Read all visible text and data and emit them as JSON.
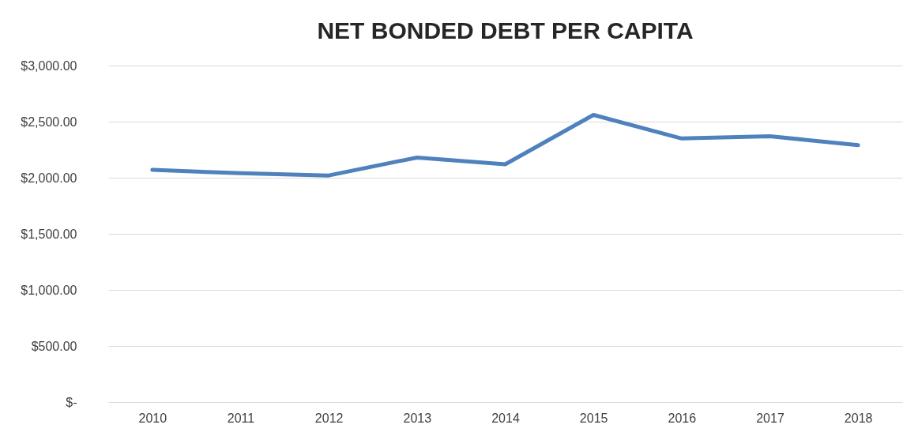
{
  "chart_data": {
    "type": "line",
    "title": "NET BONDED DEBT PER CAPITA",
    "categories": [
      "2010",
      "2011",
      "2012",
      "2013",
      "2014",
      "2015",
      "2016",
      "2017",
      "2018"
    ],
    "series": [
      {
        "color": "#4f81bd",
        "values": [
          2070,
          2040,
          2020,
          2180,
          2120,
          2560,
          2350,
          2370,
          2290
        ]
      }
    ],
    "ylim": [
      0,
      3000
    ],
    "yticks": [
      {
        "value": 0,
        "label": "$-"
      },
      {
        "value": 500,
        "label": "$500.00"
      },
      {
        "value": 1000,
        "label": "$1,000.00"
      },
      {
        "value": 1500,
        "label": "$1,500.00"
      },
      {
        "value": 2000,
        "label": "$2,000.00"
      },
      {
        "value": 2500,
        "label": "$2,500.00"
      },
      {
        "value": 3000,
        "label": "$3,000.00"
      }
    ],
    "grid": "y",
    "legend": false,
    "marker": "none",
    "line_style": "solid"
  }
}
